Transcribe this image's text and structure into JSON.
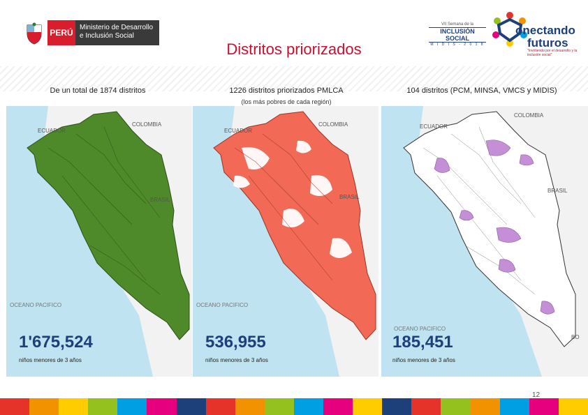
{
  "header": {
    "peru_label": "PERÚ",
    "ministry_line1": "Ministerio de Desarrollo",
    "ministry_line2": "e Inclusión Social",
    "title": "Distritos priorizados",
    "inclusion_logo": {
      "top": "VII Semana de la",
      "main": "INCLUSIÓN SOCIAL",
      "sub": "M I D I S - 2 0 1 8"
    },
    "conectando_logo": {
      "line1": "onectando",
      "line2": "futuros",
      "tagline": "\"Invirtiendo por el desarrollo y la inclusión social\""
    }
  },
  "columns": [
    {
      "heading": "De un total de 1874 distritos",
      "subheading": "",
      "fill_color": "#4f8a2a",
      "number": "1'675,524",
      "caption": "niños menores de 3 años",
      "labels": {
        "ecuador": "ECUADOR",
        "colombia": "COLOMBIA",
        "brasil": "BRASIL",
        "ocean": "OCEANO PACIFICO"
      }
    },
    {
      "heading": "1226 distritos priorizados PMLCA",
      "subheading": "(los más pobres de cada región)",
      "fill_color": "#f26a55",
      "number": "536,955",
      "caption": "niños menores de 3 años",
      "labels": {
        "ecuador": "ECUADOR",
        "colombia": "COLOMBIA",
        "brasil": "BRASIL",
        "ocean": "OCEANO PACIFICO"
      }
    },
    {
      "heading": "104 distritos (PCM, MINSA, VMCS y MIDIS)",
      "subheading": "",
      "fill_color": "#c48fd6",
      "number": "185,451",
      "caption": "niños menores de 3 años",
      "labels": {
        "ecuador": "ECUADOR",
        "colombia": "COLOMBIA",
        "brasil": "BRASIL",
        "ocean": "OCEANO PACIFICO",
        "bo": "BO"
      }
    }
  ],
  "page_number": "12",
  "colors": {
    "ocean": "#bfe3f1",
    "land": "#f2f2f2",
    "accent_red": "#c8102e",
    "number_blue": "#1d3f7a"
  }
}
